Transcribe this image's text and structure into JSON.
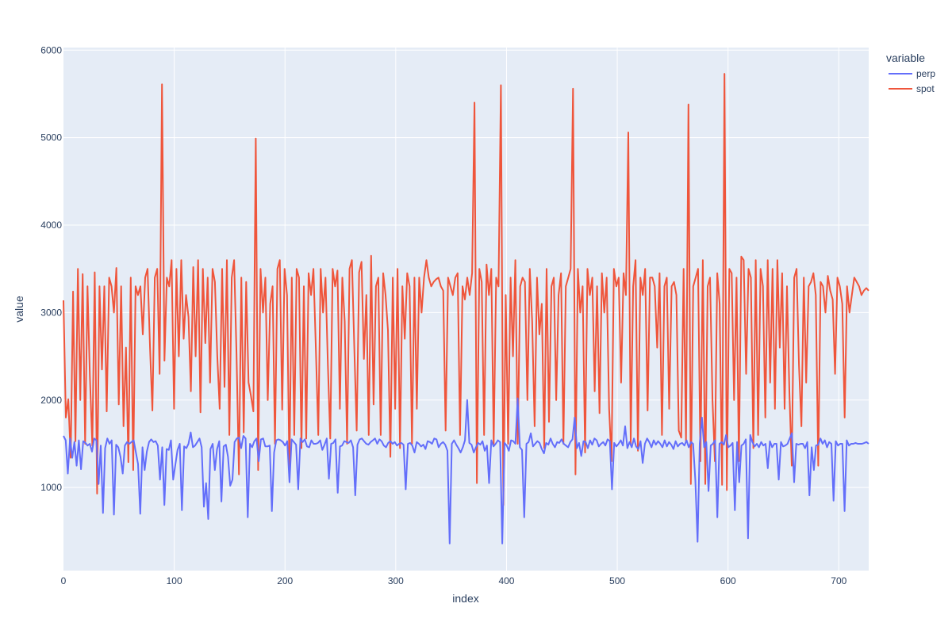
{
  "chart_data": {
    "type": "line",
    "xlabel": "index",
    "ylabel": "value",
    "xlim": [
      0,
      727
    ],
    "ylim": [
      50,
      6030
    ],
    "x_ticks": [
      0,
      100,
      200,
      300,
      400,
      500,
      600,
      700
    ],
    "y_ticks": [
      1000,
      2000,
      3000,
      4000,
      5000,
      6000
    ],
    "legend": {
      "title": "variable",
      "placement": "right"
    },
    "grid": true,
    "background": "#e5ecf6",
    "series": [
      {
        "name": "perp",
        "color": "#636efa",
        "values": [
          1590,
          1540,
          1160,
          1560,
          1340,
          1520,
          1250,
          1540,
          1210,
          1530,
          1510,
          1480,
          1500,
          1410,
          1560,
          1540,
          1040,
          1480,
          710,
          1450,
          1560,
          1500,
          1540,
          690,
          1490,
          1460,
          1350,
          1160,
          1480,
          1520,
          1500,
          1520,
          1540,
          1400,
          1270,
          700,
          1460,
          1200,
          1410,
          1520,
          1550,
          1520,
          1530,
          1480,
          1090,
          1460,
          800,
          1440,
          1430,
          1540,
          1090,
          1260,
          1430,
          1500,
          740,
          1470,
          1450,
          1500,
          1630,
          1460,
          1480,
          1520,
          1560,
          1460,
          780,
          1050,
          640,
          1440,
          1500,
          1200,
          1440,
          1530,
          840,
          1470,
          1490,
          1350,
          1020,
          1090,
          1520,
          1560,
          1570,
          1450,
          1590,
          1560,
          660,
          1500,
          1460,
          1530,
          1560,
          1300,
          1550,
          1560,
          1470,
          1470,
          1480,
          730,
          1400,
          1540,
          1550,
          1540,
          1520,
          1480,
          1530,
          1060,
          1550,
          1520,
          1490,
          980,
          1560,
          1520,
          1550,
          1470,
          1460,
          1540,
          1500,
          1500,
          1510,
          1540,
          1430,
          1490,
          1560,
          1100,
          1500,
          1510,
          1550,
          940,
          1470,
          1480,
          1530,
          1520,
          1510,
          1540,
          1460,
          910,
          1490,
          1550,
          1560,
          1530,
          1500,
          1490,
          1520,
          1540,
          1560,
          1500,
          1550,
          1530,
          1480,
          1460,
          1510,
          1530,
          1500,
          1520,
          1480,
          1500,
          1510,
          1490,
          980,
          1500,
          1510,
          1480,
          1400,
          1520,
          1500,
          1470,
          1490,
          1440,
          1530,
          1520,
          1500,
          1560,
          1550,
          1460,
          1500,
          1520,
          1490,
          1420,
          360,
          1500,
          1540,
          1490,
          1450,
          1400,
          1460,
          1540,
          2000,
          1510,
          1490,
          1400,
          1460,
          1510,
          1490,
          1530,
          1420,
          1480,
          1050,
          1540,
          1470,
          1500,
          1540,
          1520,
          360,
          1510,
          1480,
          1420,
          1540,
          1530,
          1500,
          2020,
          1460,
          1430,
          660,
          1500,
          1520,
          1620,
          1470,
          1500,
          1530,
          1510,
          1440,
          1390,
          1510,
          1490,
          1560,
          1500,
          1460,
          1520,
          1510,
          1550,
          1500,
          1480,
          1460,
          1520,
          1550,
          1800,
          1450,
          1510,
          1360,
          1530,
          1520,
          1450,
          1540,
          1490,
          1560,
          1540,
          1470,
          1500,
          1520,
          1480,
          1550,
          1530,
          980,
          1510,
          1470,
          1500,
          1540,
          1480,
          1700,
          1450,
          1520,
          1460,
          1560,
          1470,
          1440,
          1530,
          1280,
          1500,
          1560,
          1520,
          1460,
          1540,
          1490,
          1530,
          1500,
          1460,
          1540,
          1470,
          1520,
          1490,
          1440,
          1530,
          1470,
          1500,
          1510,
          1480,
          1540,
          1460,
          1520,
          1500,
          1080,
          380,
          1500,
          1800,
          1460,
          1520,
          960,
          1480,
          1500,
          1540,
          660,
          1500,
          1520,
          1490,
          1600,
          1460,
          1480,
          1510,
          740,
          1520,
          1060,
          1480,
          1500,
          1550,
          420,
          1600,
          1520,
          1470,
          1500,
          1460,
          1520,
          1480,
          1500,
          1220,
          1530,
          1460,
          1500,
          1500,
          1090,
          1520,
          1470,
          1480,
          1500,
          1560,
          1620,
          1060,
          1500,
          1490,
          1500,
          1500,
          1450,
          1520,
          910,
          1460,
          1200,
          1480,
          1490,
          1560,
          1500,
          1540,
          1460,
          1520,
          1500,
          850,
          1530,
          1480,
          1500,
          1500,
          730,
          1540,
          1480,
          1500,
          1500,
          1510,
          1500,
          1500,
          1500,
          1510,
          1520,
          1500
        ]
      },
      {
        "name": "spot",
        "color": "#ef553b",
        "values": [
          3140,
          1800,
          2010,
          1340,
          3240,
          1530,
          3500,
          2000,
          3440,
          1500,
          3300,
          2270,
          1480,
          3460,
          930,
          3300,
          2350,
          3300,
          1870,
          3400,
          3300,
          3000,
          3510,
          1950,
          3300,
          1700,
          2600,
          1290,
          3400,
          1200,
          3300,
          3200,
          3300,
          2750,
          3400,
          3500,
          2600,
          1880,
          3400,
          3500,
          2300,
          5610,
          2450,
          3400,
          3300,
          3600,
          1900,
          3500,
          2500,
          3600,
          2700,
          3200,
          2950,
          2100,
          3520,
          2500,
          3600,
          1860,
          3500,
          2650,
          3400,
          2200,
          3500,
          3350,
          2500,
          1900,
          3500,
          2150,
          3600,
          1600,
          3400,
          3600,
          2540,
          1150,
          3400,
          1630,
          3350,
          2200,
          2050,
          1870,
          4990,
          1200,
          3500,
          3000,
          3400,
          2000,
          3100,
          3300,
          1500,
          3500,
          3600,
          1890,
          3500,
          3200,
          1200,
          3400,
          1600,
          3500,
          3400,
          1450,
          3300,
          1560,
          3450,
          3200,
          3500,
          2600,
          1600,
          3500,
          3000,
          3400,
          2400,
          1560,
          3500,
          3300,
          3480,
          1900,
          3400,
          2900,
          1500,
          3500,
          3600,
          2600,
          1650,
          3460,
          3580,
          2470,
          3200,
          1600,
          3650,
          1950,
          3300,
          3400,
          1600,
          3450,
          3200,
          2800,
          1350,
          3400,
          1900,
          3500,
          1450,
          3300,
          2700,
          3450,
          3300,
          1500,
          3400,
          1900,
          3400,
          3000,
          3400,
          3600,
          3400,
          3300,
          3350,
          3380,
          3400,
          3300,
          3250,
          1650,
          3400,
          3300,
          3200,
          3400,
          3450,
          1600,
          3300,
          3150,
          3400,
          3200,
          3450,
          5400,
          1050,
          3500,
          3350,
          1600,
          3550,
          3200,
          3500,
          1500,
          3400,
          3300,
          5600,
          800,
          3200,
          1500,
          3400,
          2500,
          3600,
          1500,
          3300,
          3400,
          3350,
          2000,
          3500,
          2900,
          1700,
          3400,
          2750,
          3100,
          1450,
          3500,
          1750,
          3300,
          3400,
          2000,
          3200,
          3450,
          1500,
          3300,
          3400,
          3500,
          5560,
          1150,
          3500,
          3000,
          3300,
          1400,
          3500,
          3200,
          3400,
          2100,
          3300,
          1850,
          3450,
          3000,
          3400,
          1900,
          1300,
          3500,
          3300,
          3400,
          2200,
          3450,
          3200,
          5060,
          1500,
          3300,
          3600,
          1420,
          3400,
          3200,
          3500,
          1880,
          3400,
          3400,
          3300,
          2600,
          3450,
          1600,
          3300,
          3400,
          1900,
          3300,
          3350,
          3200,
          1650,
          1570,
          3500,
          1530,
          5380,
          1040,
          3300,
          3400,
          3500,
          1300,
          3600,
          1040,
          3300,
          3400,
          2000,
          1300,
          3450,
          3100,
          1030,
          5730,
          970,
          3500,
          3450,
          2000,
          3400,
          1300,
          3640,
          3600,
          2300,
          3500,
          3400,
          1450,
          3600,
          1600,
          3500,
          3300,
          1800,
          3600,
          2200,
          3500,
          1900,
          3600,
          2600,
          3450,
          1900,
          3300,
          2100,
          1250,
          3400,
          3500,
          2400,
          1700,
          3400,
          2200,
          3300,
          3350,
          3450,
          3200,
          1250,
          3350,
          3300,
          3000,
          3420,
          3250,
          3150,
          2300,
          3400,
          3300,
          3100,
          1800,
          3300,
          3000,
          3200,
          3400,
          3350,
          3300,
          3200,
          3250,
          3280,
          3250
        ]
      }
    ]
  }
}
